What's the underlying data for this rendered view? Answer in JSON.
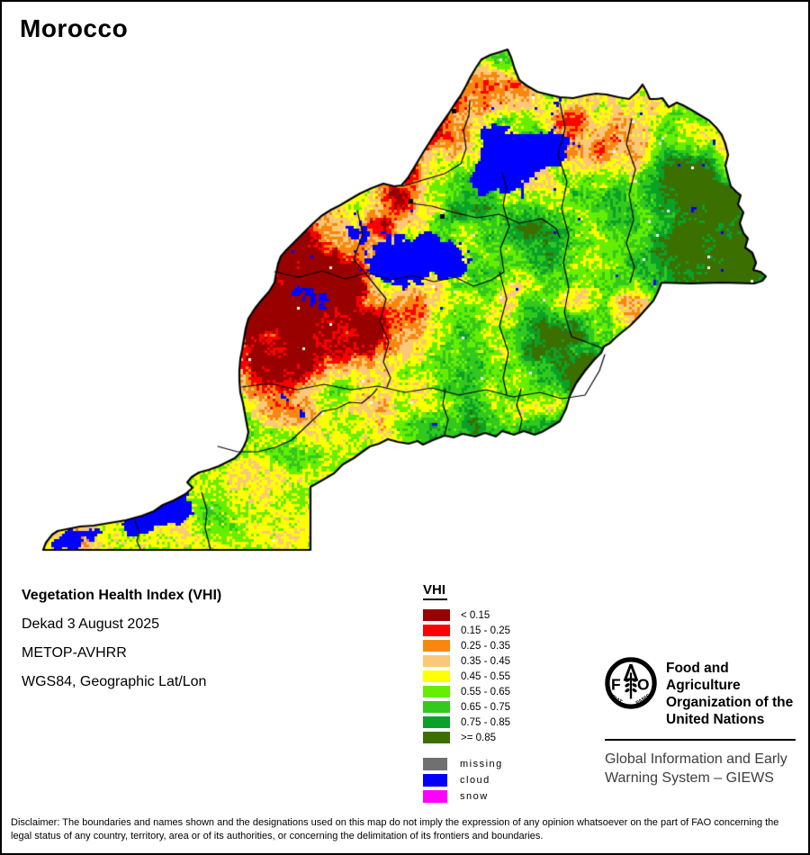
{
  "title": "Morocco",
  "info": {
    "product": "Vegetation Health Index (VHI)",
    "dekad": "Dekad 3 August 2025",
    "sensor": "METOP-AVHRR",
    "projection": "WGS84, Geographic Lat/Lon"
  },
  "legend": {
    "title": "VHI",
    "classes": [
      {
        "label": "< 0.15",
        "color": "#990000"
      },
      {
        "label": "0.15 - 0.25",
        "color": "#FF0000"
      },
      {
        "label": "0.25 - 0.35",
        "color": "#F8870F"
      },
      {
        "label": "0.35 - 0.45",
        "color": "#FAC878"
      },
      {
        "label": "0.45 - 0.55",
        "color": "#FFFF00"
      },
      {
        "label": "0.55 - 0.65",
        "color": "#66EE00"
      },
      {
        "label": "0.65 - 0.75",
        "color": "#32C81E"
      },
      {
        "label": "0.75 - 0.85",
        "color": "#0AA128"
      },
      {
        "label": ">= 0.85",
        "color": "#3B7000"
      }
    ],
    "extras": [
      {
        "label": "missing",
        "color": "#707070"
      },
      {
        "label": "cloud",
        "color": "#0000FF"
      },
      {
        "label": "snow",
        "color": "#FF00FF"
      }
    ]
  },
  "footer": {
    "org_lines": [
      "Food and Agriculture",
      "Organization of the",
      "United Nations"
    ],
    "giews_lines": [
      "Global Information and Early",
      "Warning System – GIEWS"
    ],
    "logo": {
      "letter_f": "F",
      "letter_o": "O",
      "motto_left": "FIAT",
      "motto_right": "PANIS"
    }
  },
  "disclaimer": "Disclaimer: The boundaries and names shown and the designations used on this map do not imply the expression of any opinion whatsoever on the part of FAO concerning the legal status of any country, territory, area or of its authorities, or concerning the delimitation of its frontiers and boundaries."
}
